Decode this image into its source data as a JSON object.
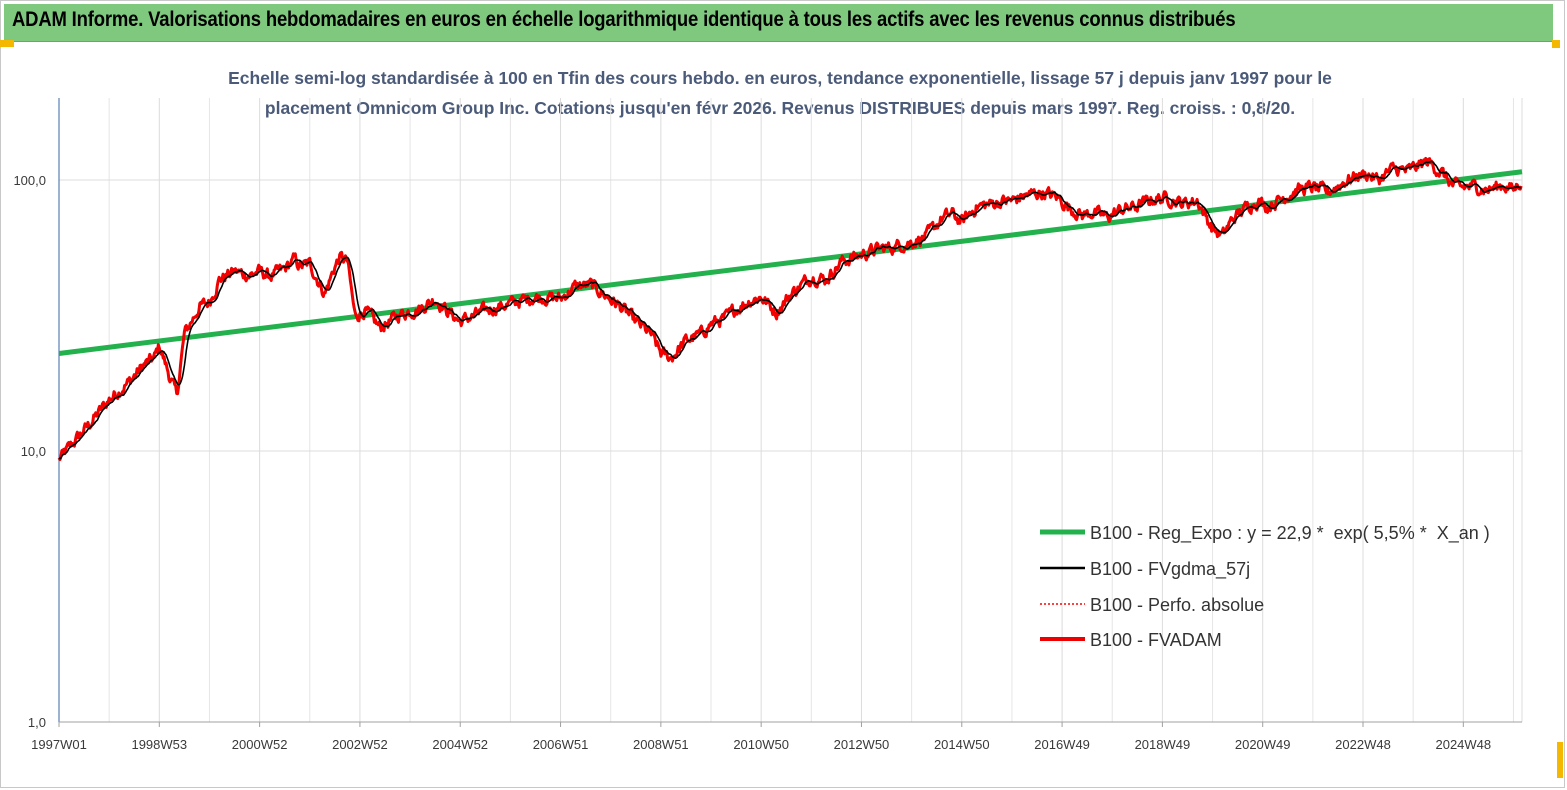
{
  "header": {
    "title": "ADAM Informe. Valorisations hebdomadaires en euros en échelle logarithmique identique à tous les actifs avec les revenus connus distribués"
  },
  "colors": {
    "title_bg": "#7fc97f",
    "regression": "#22b14c",
    "fvgdma": "#000000",
    "perfo": "#ff0000",
    "fvadam": "#ee0000",
    "corner_accent": "#f5b800"
  },
  "chart_data": {
    "type": "line",
    "title_lines": [
      "Echelle semi-log standardisée à 100 en Tfin des cours hebdo. en euros, tendance exponentielle, lissage 57 j depuis janv 1997 pour le",
      "placement Omnicom Group Inc. Cotations jusqu'en févr 2026. Revenus DISTRIBUES depuis mars 1997. Reg. croiss. : 0,8/20."
    ],
    "y_scale": "log",
    "ylim": [
      1,
      200
    ],
    "y_ticks": [
      "1,0",
      "10,0",
      "100,0"
    ],
    "y_tick_values": [
      1,
      10,
      100
    ],
    "xlim": [
      1997.0,
      2026.17
    ],
    "x_ticks": [
      "1997W01",
      "1998W53",
      "2000W52",
      "2002W52",
      "2004W52",
      "2006W51",
      "2008W51",
      "2010W50",
      "2012W50",
      "2014W50",
      "2016W49",
      "2018W49",
      "2020W49",
      "2022W48",
      "2024W48"
    ],
    "x_tick_years": [
      1997.0,
      1999.0,
      2001.0,
      2003.0,
      2005.0,
      2007.0,
      2009.0,
      2011.0,
      2013.0,
      2015.0,
      2017.0,
      2019.0,
      2021.0,
      2023.0,
      2025.0
    ],
    "grid": "vertical",
    "legend_position": "bottom-right",
    "legend": [
      "B100 - Reg_Expo : y = 22,9 *  exp( 5,5% *  X_an )",
      "B100 - FVgdma_57j",
      "B100 - Perfo. absolue",
      "B100 - FVADAM"
    ],
    "series": [
      {
        "name": "B100 - Reg_Expo : y = 22,9 *  exp( 5,5% *  X_an )",
        "kind": "regression",
        "x": [
          1997.0,
          2026.17
        ],
        "y": [
          22.9,
          107.3
        ]
      },
      {
        "name": "B100 - FVADAM",
        "kind": "price",
        "x": [
          1997.0,
          1997.3,
          1997.6,
          1998.0,
          1998.4,
          1998.7,
          1998.9,
          1999.0,
          1999.2,
          1999.35,
          1999.5,
          1999.8,
          2000.0,
          2000.2,
          2000.5,
          2000.8,
          2001.0,
          2001.2,
          2001.5,
          2001.7,
          2001.8,
          2002.0,
          2002.3,
          2002.5,
          2002.6,
          2002.75,
          2002.9,
          2003.1,
          2003.4,
          2003.8,
          2004.2,
          2004.5,
          2004.7,
          2005.0,
          2005.5,
          2006.0,
          2006.5,
          2007.0,
          2007.3,
          2007.6,
          2007.9,
          2008.2,
          2008.5,
          2008.8,
          2009.0,
          2009.2,
          2009.5,
          2009.8,
          2010.0,
          2010.3,
          2010.5,
          2010.8,
          2011.0,
          2011.3,
          2011.6,
          2011.8,
          2012.0,
          2012.3,
          2012.6,
          2013.0,
          2013.3,
          2013.6,
          2014.0,
          2014.3,
          2014.6,
          2014.8,
          2015.0,
          2015.3,
          2015.5,
          2015.8,
          2016.0,
          2016.3,
          2016.6,
          2016.9,
          2017.1,
          2017.4,
          2017.6,
          2017.9,
          2018.2,
          2018.5,
          2018.8,
          2019.1,
          2019.4,
          2019.7,
          2020.0,
          2020.2,
          2020.4,
          2020.7,
          2020.9,
          2021.1,
          2021.4,
          2021.7,
          2022.0,
          2022.3,
          2022.6,
          2022.9,
          2023.1,
          2023.3,
          2023.6,
          2023.9,
          2024.1,
          2024.3,
          2024.6,
          2024.8,
          2025.0,
          2025.2,
          2025.5,
          2025.8,
          2026.0,
          2026.17
        ],
        "y": [
          9.3,
          10.8,
          12.5,
          15.5,
          18.0,
          20.8,
          22.0,
          24.5,
          19.0,
          16.0,
          27.0,
          34.0,
          35.5,
          43.0,
          46.0,
          44.5,
          46.0,
          44.0,
          47.0,
          51.0,
          48.0,
          49.0,
          38.0,
          48.0,
          52.0,
          50.0,
          31.5,
          33.0,
          28.5,
          32.0,
          33.5,
          36.5,
          33.5,
          30.0,
          33.0,
          35.0,
          37.0,
          36.5,
          40.5,
          41.0,
          37.5,
          34.0,
          30.0,
          27.0,
          23.0,
          22.0,
          25.5,
          27.0,
          29.5,
          31.0,
          33.5,
          36.0,
          37.0,
          32.5,
          38.0,
          41.0,
          44.0,
          43.0,
          50.0,
          53.0,
          55.5,
          56.5,
          59.0,
          62.0,
          72.0,
          75.0,
          70.0,
          80.0,
          81.0,
          83.5,
          84.0,
          88.0,
          90.0,
          86.5,
          80.0,
          74.0,
          76.0,
          73.0,
          78.0,
          80.0,
          85.0,
          86.0,
          82.0,
          84.0,
          66.0,
          62.0,
          72.0,
          80.0,
          84.0,
          80.0,
          86.0,
          92.0,
          94.0,
          90.0,
          98.0,
          104.0,
          105.0,
          100.0,
          110.0,
          108.0,
          113.0,
          117.0,
          105.0,
          95.0,
          94.0,
          95.0,
          92.0,
          96.0,
          92.0,
          100.0
        ]
      },
      {
        "name": "B100 - FVgdma_57j",
        "kind": "smoothed"
      },
      {
        "name": "B100 - Perfo. absolue",
        "kind": "dotted"
      }
    ]
  }
}
